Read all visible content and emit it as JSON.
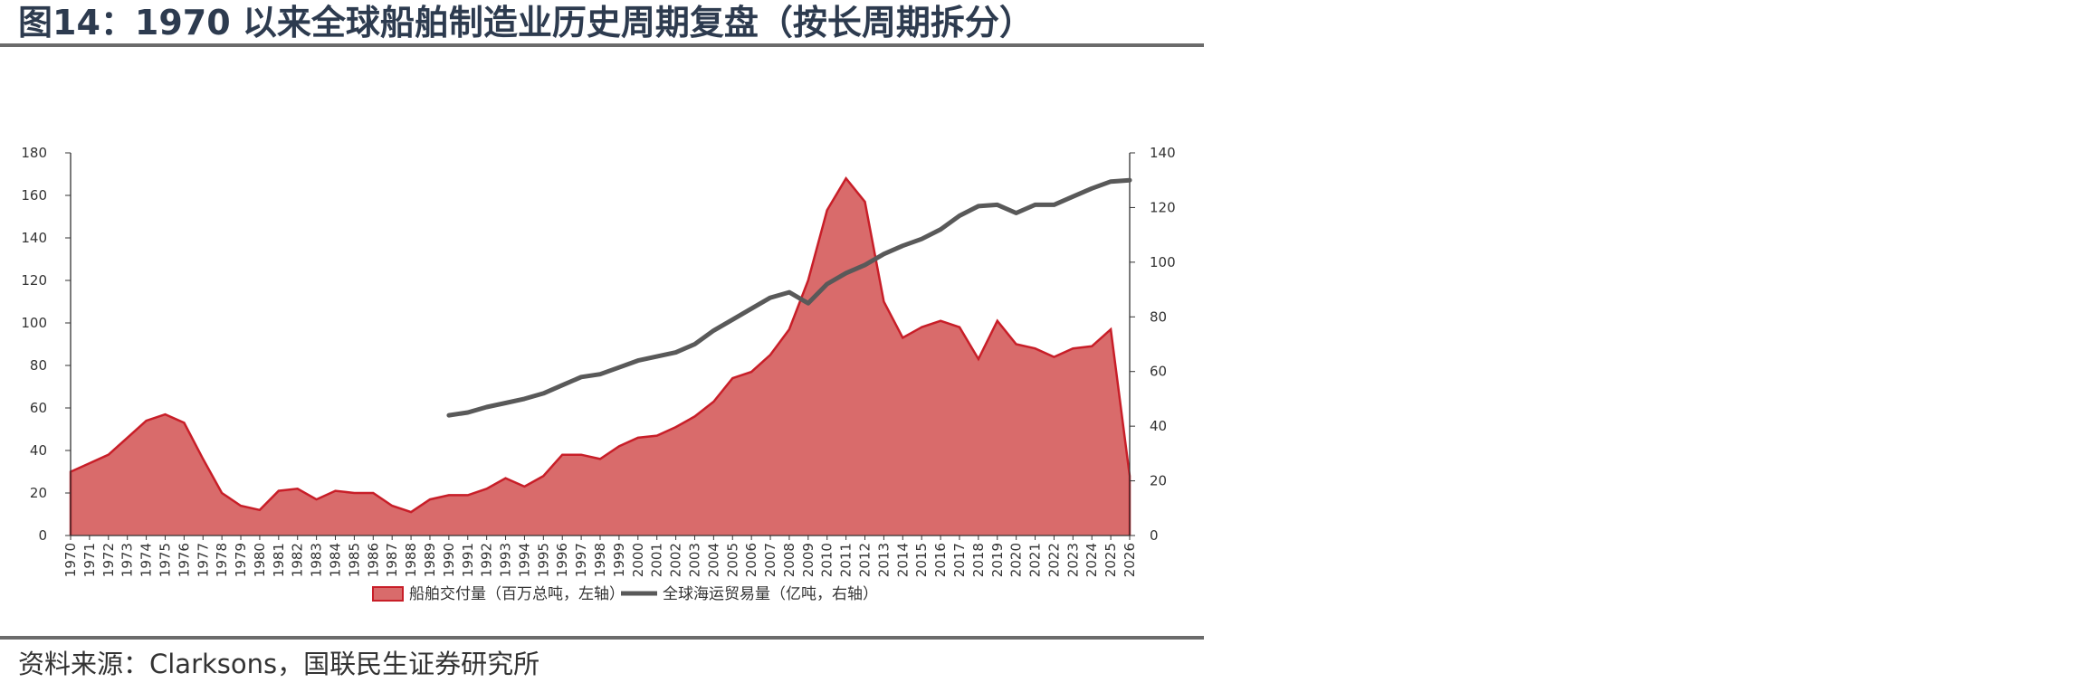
{
  "figure": {
    "title": "图14：1970 以来全球船舶制造业历史周期复盘（按长周期拆分）",
    "source": "资料来源：Clarksons，国联民生证券研究所"
  },
  "chart_data": {
    "type": "area",
    "title": "",
    "x": [
      1970,
      1971,
      1972,
      1973,
      1974,
      1975,
      1976,
      1977,
      1978,
      1979,
      1980,
      1981,
      1982,
      1983,
      1984,
      1985,
      1986,
      1987,
      1988,
      1989,
      1990,
      1991,
      1992,
      1993,
      1994,
      1995,
      1996,
      1997,
      1998,
      1999,
      2000,
      2001,
      2002,
      2003,
      2004,
      2005,
      2006,
      2007,
      2008,
      2009,
      2010,
      2011,
      2012,
      2013,
      2014,
      2015,
      2016,
      2017,
      2018,
      2019,
      2020,
      2021,
      2022,
      2023,
      2024,
      2025,
      2026
    ],
    "series": [
      {
        "name": "船舶交付量（百万总吨，左轴）",
        "type": "area",
        "axis": "left",
        "color": "#d96b6b",
        "stroke": "#c81e28",
        "values": [
          30,
          34,
          38,
          46,
          54,
          57,
          53,
          36,
          20,
          14,
          12,
          21,
          22,
          17,
          21,
          20,
          20,
          14,
          11,
          17,
          19,
          19,
          22,
          27,
          23,
          28,
          38,
          38,
          36,
          42,
          46,
          47,
          51,
          56,
          63,
          74,
          77,
          85,
          97,
          120,
          153,
          168,
          157,
          110,
          93,
          98,
          101,
          98,
          83,
          101,
          90,
          88,
          84,
          88,
          89,
          97,
          28
        ]
      },
      {
        "name": "全球海运贸易量（亿吨，右轴）",
        "type": "line",
        "axis": "right",
        "color": "#595959",
        "values": [
          null,
          null,
          null,
          null,
          null,
          null,
          null,
          null,
          null,
          null,
          null,
          null,
          null,
          null,
          null,
          null,
          null,
          null,
          null,
          null,
          44,
          45,
          47,
          48.5,
          50,
          52,
          55,
          58,
          59,
          61.5,
          64,
          65.5,
          67,
          70,
          75,
          79,
          83,
          87,
          89,
          85,
          92,
          96,
          99,
          103,
          106,
          108.5,
          112,
          117,
          120.5,
          121,
          118,
          121,
          121,
          124,
          127,
          129.5,
          130
        ]
      }
    ],
    "y_left": {
      "min": 0,
      "max": 180,
      "ticks": [
        0,
        20,
        40,
        60,
        80,
        100,
        120,
        140,
        160,
        180
      ]
    },
    "y_right": {
      "min": 0,
      "max": 140,
      "ticks": [
        0,
        20,
        40,
        60,
        80,
        100,
        120,
        140
      ]
    },
    "grid": false,
    "legend_position": "bottom"
  }
}
